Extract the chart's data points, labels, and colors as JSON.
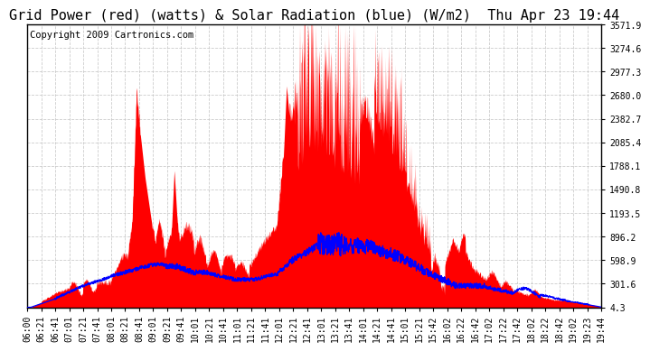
{
  "title": "Grid Power (red) (watts) & Solar Radiation (blue) (W/m2)  Thu Apr 23 19:44",
  "copyright_text": "Copyright 2009 Cartronics.com",
  "background_color": "#ffffff",
  "plot_bg_color": "#ffffff",
  "grid_color": "#c0c0c0",
  "red_fill_color": "#ff0000",
  "blue_line_color": "#0000ff",
  "y_min": 4.3,
  "y_max": 3571.9,
  "y_ticks": [
    4.3,
    301.6,
    598.9,
    896.2,
    1193.5,
    1490.8,
    1788.1,
    2085.4,
    2382.7,
    2680.0,
    2977.3,
    3274.6,
    3571.9
  ],
  "x_tick_labels": [
    "06:00",
    "06:21",
    "06:41",
    "07:01",
    "07:21",
    "07:41",
    "08:01",
    "08:21",
    "08:41",
    "09:01",
    "09:21",
    "09:41",
    "10:01",
    "10:21",
    "10:41",
    "11:01",
    "11:21",
    "11:41",
    "12:01",
    "12:21",
    "12:41",
    "13:01",
    "13:21",
    "13:41",
    "14:01",
    "14:21",
    "14:41",
    "15:01",
    "15:21",
    "15:42",
    "16:02",
    "16:22",
    "16:42",
    "17:02",
    "17:22",
    "17:42",
    "18:02",
    "18:22",
    "18:42",
    "19:02",
    "19:23",
    "19:44"
  ],
  "title_fontsize": 11,
  "tick_fontsize": 7,
  "copyright_fontsize": 7.5
}
